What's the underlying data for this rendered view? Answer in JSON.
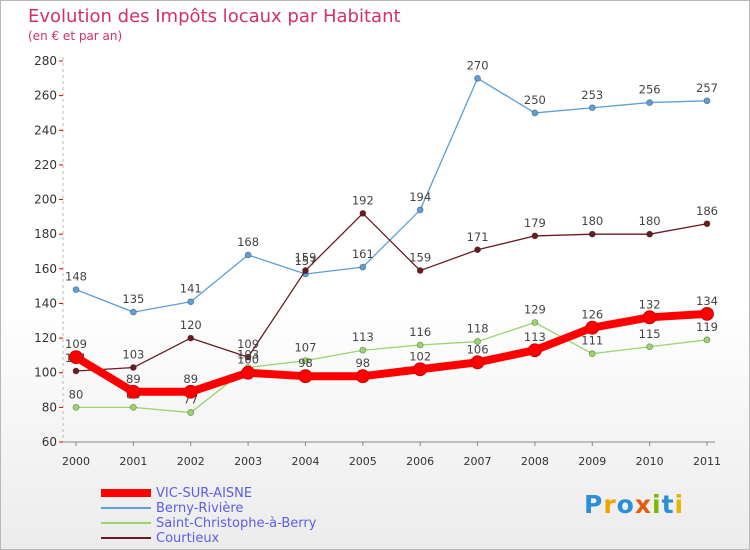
{
  "header": {
    "title": "Evolution des Impôts locaux par Habitant",
    "subtitle": "(en € et par an)"
  },
  "logo": {
    "text": "Proxiti",
    "letters": [
      "P",
      "r",
      "o",
      "x",
      "i",
      "t",
      "i"
    ],
    "colors": [
      "#2b8fd8",
      "#f0a400",
      "#2b8fd8",
      "#e06010",
      "#7ab800",
      "#2b8fd8",
      "#e8b400"
    ]
  },
  "chart_data": {
    "type": "line",
    "x": [
      "2000",
      "2001",
      "2002",
      "2003",
      "2004",
      "2005",
      "2006",
      "2007",
      "2008",
      "2009",
      "2010",
      "2011"
    ],
    "ylim": [
      60,
      280
    ],
    "yticks": [
      60,
      80,
      100,
      120,
      140,
      160,
      180,
      200,
      220,
      240,
      260,
      280
    ],
    "grid": false,
    "legend_position": "bottom-left",
    "series": [
      {
        "name": "Berny-Rivière",
        "color": "#5d9fd6",
        "values": [
          148,
          135,
          141,
          168,
          157,
          161,
          194,
          270,
          250,
          253,
          256,
          257
        ],
        "labels": [
          "148",
          "135",
          "141",
          "168",
          "157",
          "161",
          "194",
          "270",
          "250",
          "253",
          "256",
          "257"
        ]
      },
      {
        "name": "Courtieux",
        "color": "#6b1a22",
        "values": [
          101,
          103,
          120,
          109,
          159,
          192,
          159,
          171,
          179,
          180,
          180,
          186
        ],
        "labels": [
          "101",
          "103",
          "120",
          "109",
          "159",
          "192",
          "159",
          "171",
          "179",
          "180",
          "180",
          "186"
        ]
      },
      {
        "name": "Saint-Christophe-à-Berry",
        "color": "#9ad66a",
        "values": [
          80,
          80,
          77,
          103,
          107,
          113,
          116,
          118,
          129,
          111,
          115,
          119
        ],
        "labels": [
          "80",
          "80",
          "77",
          "103",
          "107",
          "113",
          "116",
          "118",
          "129",
          "111",
          "115",
          "119"
        ]
      },
      {
        "name": "VIC-SUR-AISNE",
        "color": "#ff0000",
        "values": [
          109,
          89,
          89,
          100,
          98,
          98,
          102,
          106,
          113,
          126,
          132,
          134
        ],
        "labels": [
          "109",
          "89",
          "89",
          "100",
          "98",
          "98",
          "102",
          "106",
          "113",
          "126",
          "132",
          "134"
        ]
      }
    ],
    "legend_order": [
      3,
      0,
      2,
      1
    ]
  }
}
